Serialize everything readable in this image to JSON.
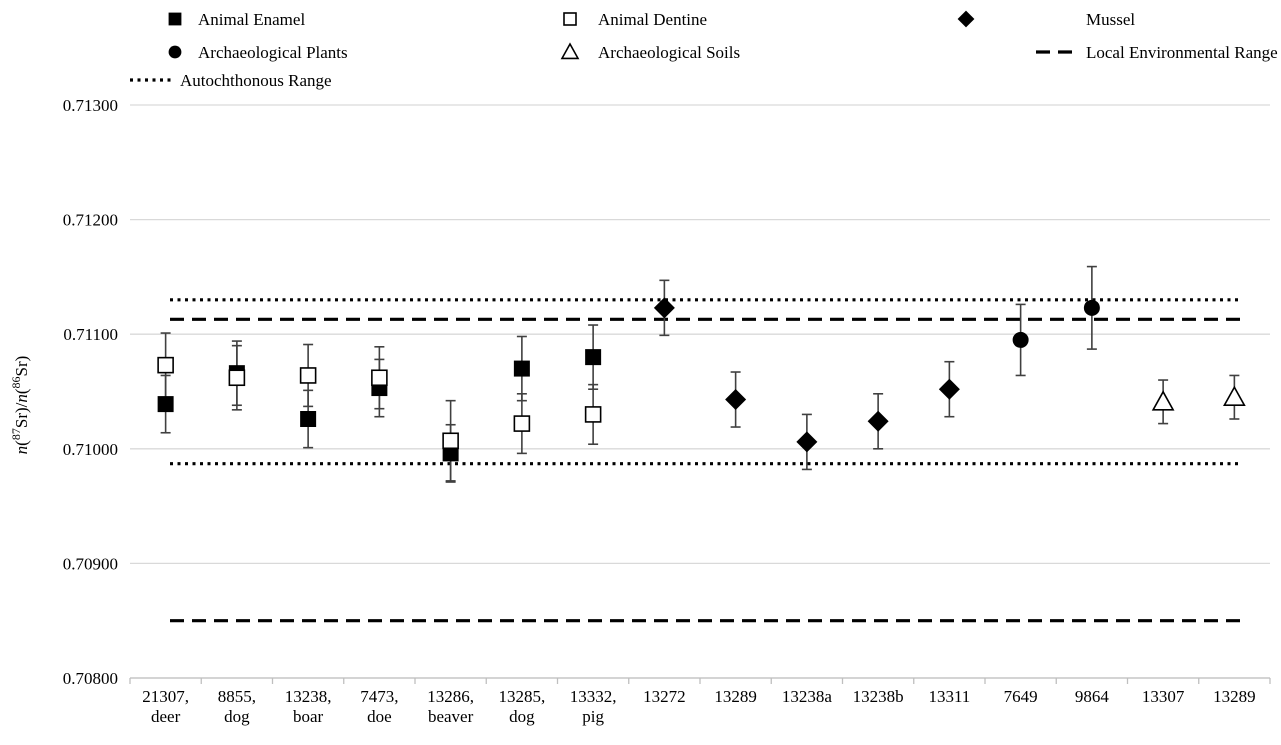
{
  "chart_data": {
    "type": "scatter",
    "title": "",
    "xlabel": "",
    "ylabel_parts": [
      "n",
      "(",
      "87",
      "Sr)/",
      "n",
      "(",
      "86",
      "Sr)"
    ],
    "ylim": [
      0.708,
      0.713
    ],
    "yticks": [
      "0.70800",
      "0.70900",
      "0.71000",
      "0.71100",
      "0.71200",
      "0.71300"
    ],
    "ytick_values": [
      0.708,
      0.709,
      0.71,
      0.711,
      0.712,
      0.713
    ],
    "grid": true,
    "legend_position": "top",
    "categories": [
      [
        "21307,",
        "deer"
      ],
      [
        "8855,",
        "dog"
      ],
      [
        "13238,",
        "boar"
      ],
      [
        "7473,",
        "doe"
      ],
      [
        "13286,",
        "beaver"
      ],
      [
        "13285,",
        "dog"
      ],
      [
        "13332,",
        "pig"
      ],
      [
        "13272"
      ],
      [
        "13289"
      ],
      [
        "13238a"
      ],
      [
        "13238b"
      ],
      [
        "13311"
      ],
      [
        "7649"
      ],
      [
        "9864"
      ],
      [
        "13307"
      ],
      [
        "13289"
      ]
    ],
    "series": [
      {
        "name": "Animal Enamel",
        "marker": "square-filled",
        "points": [
          {
            "i": 0,
            "y": 0.71039,
            "err": 0.00025
          },
          {
            "i": 1,
            "y": 0.71066,
            "err": 0.00028
          },
          {
            "i": 2,
            "y": 0.71026,
            "err": 0.00025
          },
          {
            "i": 3,
            "y": 0.71053,
            "err": 0.00025
          },
          {
            "i": 4,
            "y": 0.70996,
            "err": 0.00025
          },
          {
            "i": 5,
            "y": 0.7107,
            "err": 0.00028
          },
          {
            "i": 6,
            "y": 0.7108,
            "err": 0.00028
          }
        ]
      },
      {
        "name": "Animal Dentine",
        "marker": "square-open",
        "points": [
          {
            "i": 0,
            "y": 0.71073,
            "err": 0.00028
          },
          {
            "i": 1,
            "y": 0.71062,
            "err": 0.00028
          },
          {
            "i": 2,
            "y": 0.71064,
            "err": 0.00027
          },
          {
            "i": 3,
            "y": 0.71062,
            "err": 0.00027
          },
          {
            "i": 4,
            "y": 0.71007,
            "err": 0.00035
          },
          {
            "i": 5,
            "y": 0.71022,
            "err": 0.00026
          },
          {
            "i": 6,
            "y": 0.7103,
            "err": 0.00026
          }
        ]
      },
      {
        "name": "Mussel",
        "marker": "diamond-filled",
        "points": [
          {
            "i": 7,
            "y": 0.71123,
            "err": 0.00024
          },
          {
            "i": 8,
            "y": 0.71043,
            "err": 0.00024
          },
          {
            "i": 9,
            "y": 0.71006,
            "err": 0.00024
          },
          {
            "i": 10,
            "y": 0.71024,
            "err": 0.00024
          },
          {
            "i": 11,
            "y": 0.71052,
            "err": 0.00024
          }
        ]
      },
      {
        "name": "Archaeological Plants",
        "marker": "circle-filled",
        "points": [
          {
            "i": 12,
            "y": 0.71095,
            "err": 0.00031
          },
          {
            "i": 13,
            "y": 0.71123,
            "err": 0.00036
          }
        ]
      },
      {
        "name": "Archaeological Soils",
        "marker": "triangle-open",
        "points": [
          {
            "i": 14,
            "y": 0.71041,
            "err": 0.00019
          },
          {
            "i": 15,
            "y": 0.71045,
            "err": 0.00019
          }
        ]
      }
    ],
    "ranges": [
      {
        "name": "Local Environmental Range",
        "style": "dashed",
        "values": [
          0.7085,
          0.71113
        ]
      },
      {
        "name": "Autochthonous Range",
        "style": "dotted",
        "values": [
          0.70987,
          0.7113
        ]
      }
    ],
    "legend": [
      {
        "label": "Animal Enamel",
        "marker": "square-filled"
      },
      {
        "label": "Animal Dentine",
        "marker": "square-open"
      },
      {
        "label": "Mussel",
        "marker": "diamond-filled"
      },
      {
        "label": "Archaeological Plants",
        "marker": "circle-filled"
      },
      {
        "label": "Archaeological Soils",
        "marker": "triangle-open"
      },
      {
        "label": "Local Environmental Range",
        "marker": "dashed-line"
      },
      {
        "label": "Autochthonous Range",
        "marker": "dotted-line"
      }
    ]
  }
}
